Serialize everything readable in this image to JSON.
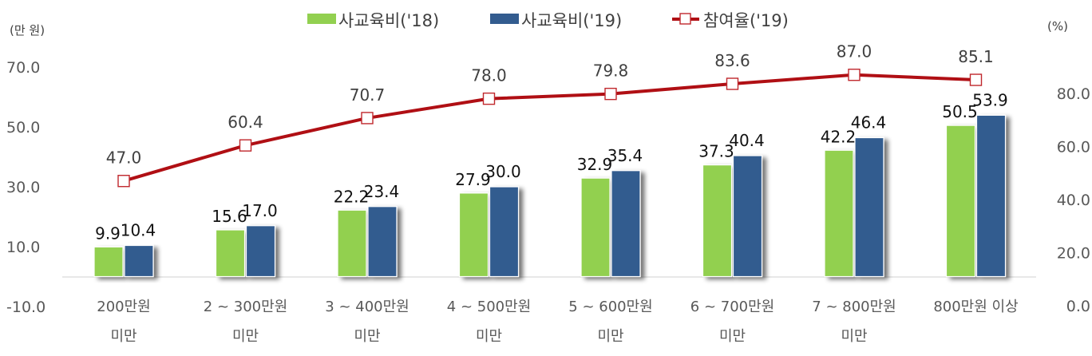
{
  "chart_data": {
    "type": "bar+line",
    "title": "",
    "legend": [
      {
        "name": "사교육비('18)",
        "type": "bar",
        "color": "#92D050"
      },
      {
        "name": "사교육비('19)",
        "type": "bar",
        "color": "#335C8F"
      },
      {
        "name": "참여율('19)",
        "type": "line",
        "color": "#B00F14",
        "marker": "square-hollow"
      }
    ],
    "legend_position": "top",
    "categories": [
      [
        "200만원",
        "미만"
      ],
      [
        "2 ~ 300만원",
        "미만"
      ],
      [
        "3 ~ 400만원",
        "미만"
      ],
      [
        "4 ~ 500만원",
        "미만"
      ],
      [
        "5 ~ 600만원",
        "미만"
      ],
      [
        "6 ~ 700만원",
        "미만"
      ],
      [
        "7 ~ 800만원",
        "미만"
      ],
      [
        "800만원 이상"
      ]
    ],
    "series": [
      {
        "name": "사교육비('18)",
        "axis": "left",
        "values": [
          9.9,
          15.6,
          22.2,
          27.9,
          32.9,
          37.3,
          42.2,
          50.5
        ]
      },
      {
        "name": "사교육비('19)",
        "axis": "left",
        "values": [
          10.4,
          17.0,
          23.4,
          30.0,
          35.4,
          40.4,
          46.4,
          53.9
        ]
      },
      {
        "name": "참여율('19)",
        "axis": "right",
        "values": [
          47.0,
          60.4,
          70.7,
          78.0,
          79.8,
          83.6,
          87.0,
          85.1
        ]
      }
    ],
    "left_axis": {
      "label": "(만 원)",
      "ticks": [
        "70.0",
        "50.0",
        "30.0",
        "10.0",
        "-10.0"
      ],
      "tick_values": [
        70,
        50,
        30,
        10,
        -10
      ],
      "ylim": [
        -10,
        70
      ]
    },
    "right_axis": {
      "label": "(%)",
      "ticks": [
        "80.0",
        "60.0",
        "40.0",
        "20.0",
        "0.0"
      ],
      "tick_values": [
        80,
        60,
        40,
        20,
        0
      ],
      "ylim": [
        0,
        80
      ]
    },
    "grid": false
  }
}
